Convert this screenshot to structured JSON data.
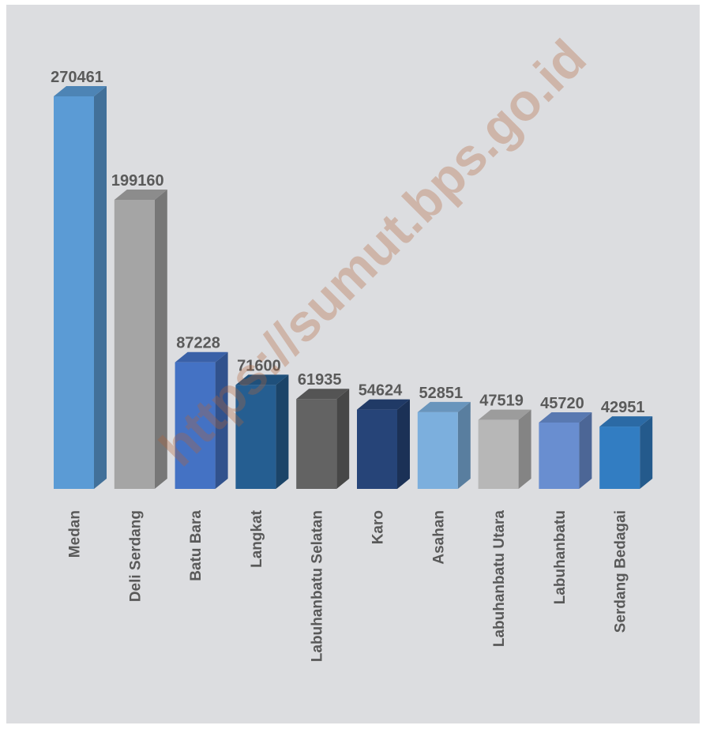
{
  "watermark": "https://sumut.bps.go.id",
  "chart_data": {
    "type": "bar",
    "title": "",
    "xlabel": "",
    "ylabel": "",
    "ylim": [
      0,
      300000
    ],
    "grid": false,
    "legend": "none",
    "categories": [
      "Medan",
      "Deli Serdang",
      "Batu Bara",
      "Langkat",
      "Labuhanbatu Selatan",
      "Karo",
      "Asahan",
      "Labuhanbatu Utara",
      "Labuhanbatu",
      "Serdang Bedagai"
    ],
    "values": [
      270461,
      199160,
      87228,
      71600,
      61935,
      54624,
      52851,
      47519,
      45720,
      42951
    ],
    "colors": [
      "#5b9bd5",
      "#a5a5a5",
      "#4472c4",
      "#255e91",
      "#636363",
      "#264478",
      "#7cafdd",
      "#b7b7b7",
      "#698ed0",
      "#327dc2"
    ]
  }
}
